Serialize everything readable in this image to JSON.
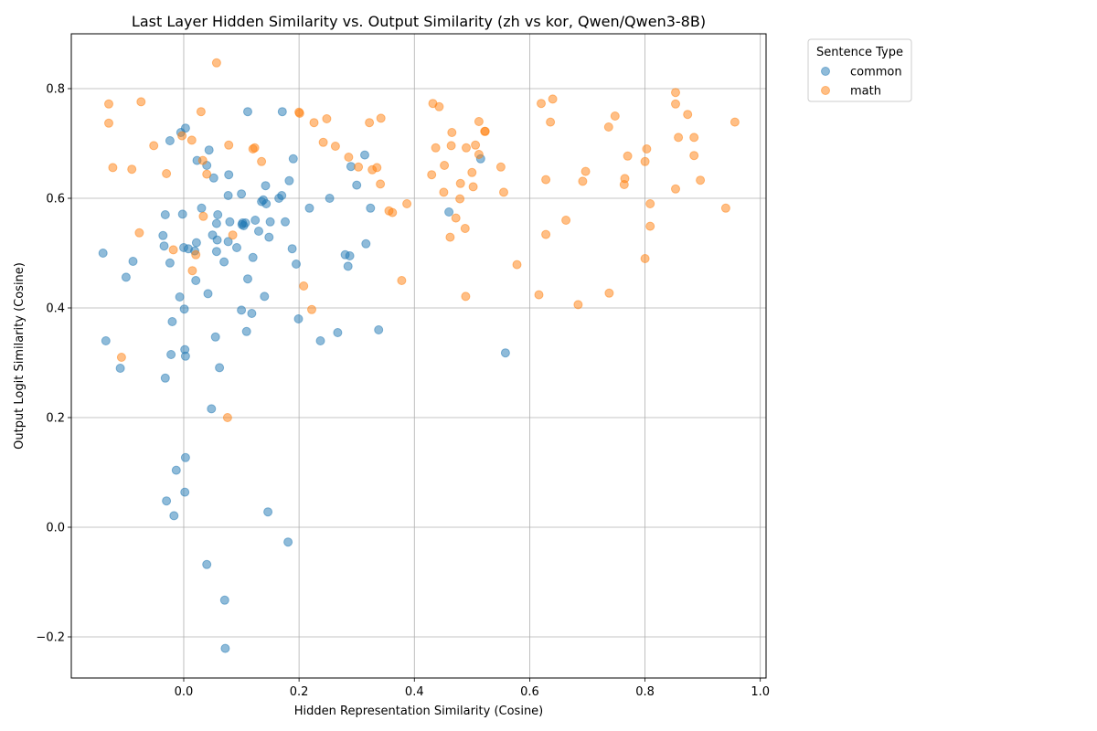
{
  "chart_data": {
    "type": "scatter",
    "title": "Last Layer Hidden Similarity vs. Output Similarity (zh vs kor, Qwen/Qwen3-8B)",
    "xlabel": "Hidden Representation Similarity (Cosine)",
    "ylabel": "Output Logit Similarity (Cosine)",
    "xlim": [
      -0.195,
      1.01
    ],
    "ylim": [
      -0.275,
      0.9
    ],
    "xticks": [
      0.0,
      0.2,
      0.4,
      0.6,
      0.8,
      1.0
    ],
    "xtick_labels": [
      "0.0",
      "0.2",
      "0.4",
      "0.6",
      "0.8",
      "1.0"
    ],
    "yticks": [
      -0.2,
      0.0,
      0.2,
      0.4,
      0.6,
      0.8
    ],
    "ytick_labels": [
      "−0.2",
      "0.0",
      "0.2",
      "0.4",
      "0.6",
      "0.8"
    ],
    "grid": true,
    "legend": {
      "title": "Sentence Type",
      "placement": "outside-top-right"
    },
    "series": [
      {
        "name": "common",
        "color": "#1f77b4",
        "points": [
          [
            -0.14,
            0.5
          ],
          [
            -0.135,
            0.34
          ],
          [
            -0.11,
            0.29
          ],
          [
            -0.1,
            0.456
          ],
          [
            -0.088,
            0.485
          ],
          [
            -0.036,
            0.532
          ],
          [
            -0.034,
            0.513
          ],
          [
            -0.032,
            0.57
          ],
          [
            -0.032,
            0.272
          ],
          [
            -0.024,
            0.482
          ],
          [
            -0.024,
            0.705
          ],
          [
            -0.022,
            0.315
          ],
          [
            -0.02,
            0.375
          ],
          [
            -0.017,
            0.021
          ],
          [
            -0.013,
            0.104
          ],
          [
            -0.03,
            0.048
          ],
          [
            -0.007,
            0.42
          ],
          [
            -0.005,
            0.72
          ],
          [
            -0.002,
            0.571
          ],
          [
            0.0,
            0.51
          ],
          [
            0.001,
            0.398
          ],
          [
            0.002,
            0.324
          ],
          [
            0.003,
            0.312
          ],
          [
            0.003,
            0.127
          ],
          [
            0.002,
            0.064
          ],
          [
            0.003,
            0.728
          ],
          [
            0.008,
            0.508
          ],
          [
            0.019,
            0.504
          ],
          [
            0.021,
            0.45
          ],
          [
            0.022,
            0.519
          ],
          [
            0.023,
            0.669
          ],
          [
            0.031,
            0.582
          ],
          [
            0.04,
            0.66
          ],
          [
            0.042,
            0.426
          ],
          [
            0.044,
            0.688
          ],
          [
            0.048,
            0.216
          ],
          [
            0.05,
            0.533
          ],
          [
            0.052,
            0.637
          ],
          [
            0.055,
            0.347
          ],
          [
            0.057,
            0.503
          ],
          [
            0.057,
            0.554
          ],
          [
            0.058,
            0.524
          ],
          [
            0.059,
            0.57
          ],
          [
            0.062,
            0.291
          ],
          [
            0.04,
            -0.068
          ],
          [
            0.07,
            0.484
          ],
          [
            0.071,
            -0.133
          ],
          [
            0.072,
            -0.221
          ],
          [
            0.077,
            0.605
          ],
          [
            0.077,
            0.521
          ],
          [
            0.078,
            0.643
          ],
          [
            0.08,
            0.557
          ],
          [
            0.092,
            0.51
          ],
          [
            0.1,
            0.396
          ],
          [
            0.1,
            0.608
          ],
          [
            0.101,
            0.552
          ],
          [
            0.102,
            0.555
          ],
          [
            0.104,
            0.55
          ],
          [
            0.107,
            0.555
          ],
          [
            0.109,
            0.357
          ],
          [
            0.111,
            0.758
          ],
          [
            0.111,
            0.453
          ],
          [
            0.118,
            0.39
          ],
          [
            0.12,
            0.492
          ],
          [
            0.124,
            0.56
          ],
          [
            0.13,
            0.54
          ],
          [
            0.135,
            0.594
          ],
          [
            0.138,
            0.597
          ],
          [
            0.14,
            0.421
          ],
          [
            0.142,
            0.623
          ],
          [
            0.143,
            0.59
          ],
          [
            0.146,
            0.028
          ],
          [
            0.148,
            0.529
          ],
          [
            0.15,
            0.557
          ],
          [
            0.165,
            0.6
          ],
          [
            0.17,
            0.605
          ],
          [
            0.171,
            0.758
          ],
          [
            0.176,
            0.557
          ],
          [
            0.181,
            -0.027
          ],
          [
            0.183,
            0.632
          ],
          [
            0.188,
            0.508
          ],
          [
            0.19,
            0.672
          ],
          [
            0.195,
            0.48
          ],
          [
            0.199,
            0.38
          ],
          [
            0.218,
            0.582
          ],
          [
            0.237,
            0.34
          ],
          [
            0.253,
            0.6
          ],
          [
            0.267,
            0.355
          ],
          [
            0.28,
            0.497
          ],
          [
            0.285,
            0.476
          ],
          [
            0.288,
            0.495
          ],
          [
            0.29,
            0.658
          ],
          [
            0.3,
            0.624
          ],
          [
            0.314,
            0.679
          ],
          [
            0.316,
            0.517
          ],
          [
            0.324,
            0.582
          ],
          [
            0.338,
            0.36
          ],
          [
            0.46,
            0.575
          ],
          [
            0.515,
            0.672
          ],
          [
            0.558,
            0.318
          ]
        ]
      },
      {
        "name": "math",
        "color": "#ff7f0e",
        "points": [
          [
            -0.13,
            0.772
          ],
          [
            -0.13,
            0.737
          ],
          [
            -0.123,
            0.656
          ],
          [
            -0.108,
            0.31
          ],
          [
            -0.09,
            0.653
          ],
          [
            -0.077,
            0.537
          ],
          [
            -0.074,
            0.776
          ],
          [
            -0.052,
            0.696
          ],
          [
            -0.03,
            0.645
          ],
          [
            -0.018,
            0.506
          ],
          [
            -0.003,
            0.714
          ],
          [
            0.014,
            0.706
          ],
          [
            0.015,
            0.468
          ],
          [
            0.021,
            0.497
          ],
          [
            0.03,
            0.758
          ],
          [
            0.033,
            0.669
          ],
          [
            0.034,
            0.567
          ],
          [
            0.04,
            0.644
          ],
          [
            0.057,
            0.847
          ],
          [
            0.076,
            0.2
          ],
          [
            0.078,
            0.697
          ],
          [
            0.085,
            0.533
          ],
          [
            0.12,
            0.69
          ],
          [
            0.123,
            0.692
          ],
          [
            0.135,
            0.667
          ],
          [
            0.2,
            0.757
          ],
          [
            0.201,
            0.755
          ],
          [
            0.208,
            0.44
          ],
          [
            0.222,
            0.397
          ],
          [
            0.226,
            0.738
          ],
          [
            0.242,
            0.702
          ],
          [
            0.248,
            0.745
          ],
          [
            0.263,
            0.695
          ],
          [
            0.286,
            0.675
          ],
          [
            0.303,
            0.657
          ],
          [
            0.322,
            0.738
          ],
          [
            0.327,
            0.652
          ],
          [
            0.335,
            0.656
          ],
          [
            0.341,
            0.626
          ],
          [
            0.342,
            0.746
          ],
          [
            0.356,
            0.577
          ],
          [
            0.362,
            0.574
          ],
          [
            0.378,
            0.45
          ],
          [
            0.387,
            0.59
          ],
          [
            0.43,
            0.643
          ],
          [
            0.432,
            0.773
          ],
          [
            0.437,
            0.692
          ],
          [
            0.443,
            0.767
          ],
          [
            0.451,
            0.611
          ],
          [
            0.452,
            0.66
          ],
          [
            0.462,
            0.529
          ],
          [
            0.464,
            0.696
          ],
          [
            0.465,
            0.72
          ],
          [
            0.472,
            0.564
          ],
          [
            0.479,
            0.599
          ],
          [
            0.48,
            0.627
          ],
          [
            0.488,
            0.545
          ],
          [
            0.489,
            0.421
          ],
          [
            0.49,
            0.692
          ],
          [
            0.5,
            0.647
          ],
          [
            0.502,
            0.621
          ],
          [
            0.506,
            0.697
          ],
          [
            0.512,
            0.74
          ],
          [
            0.512,
            0.68
          ],
          [
            0.522,
            0.722
          ],
          [
            0.523,
            0.722
          ],
          [
            0.55,
            0.657
          ],
          [
            0.555,
            0.611
          ],
          [
            0.578,
            0.479
          ],
          [
            0.616,
            0.424
          ],
          [
            0.62,
            0.773
          ],
          [
            0.628,
            0.534
          ],
          [
            0.628,
            0.634
          ],
          [
            0.636,
            0.739
          ],
          [
            0.64,
            0.781
          ],
          [
            0.663,
            0.56
          ],
          [
            0.684,
            0.406
          ],
          [
            0.692,
            0.631
          ],
          [
            0.697,
            0.649
          ],
          [
            0.737,
            0.73
          ],
          [
            0.738,
            0.427
          ],
          [
            0.748,
            0.75
          ],
          [
            0.764,
            0.625
          ],
          [
            0.765,
            0.636
          ],
          [
            0.77,
            0.677
          ],
          [
            0.8,
            0.49
          ],
          [
            0.8,
            0.667
          ],
          [
            0.803,
            0.69
          ],
          [
            0.809,
            0.59
          ],
          [
            0.809,
            0.549
          ],
          [
            0.853,
            0.793
          ],
          [
            0.853,
            0.772
          ],
          [
            0.853,
            0.617
          ],
          [
            0.858,
            0.711
          ],
          [
            0.874,
            0.753
          ],
          [
            0.885,
            0.711
          ],
          [
            0.885,
            0.678
          ],
          [
            0.896,
            0.633
          ],
          [
            0.94,
            0.582
          ],
          [
            0.956,
            0.739
          ]
        ]
      }
    ]
  }
}
